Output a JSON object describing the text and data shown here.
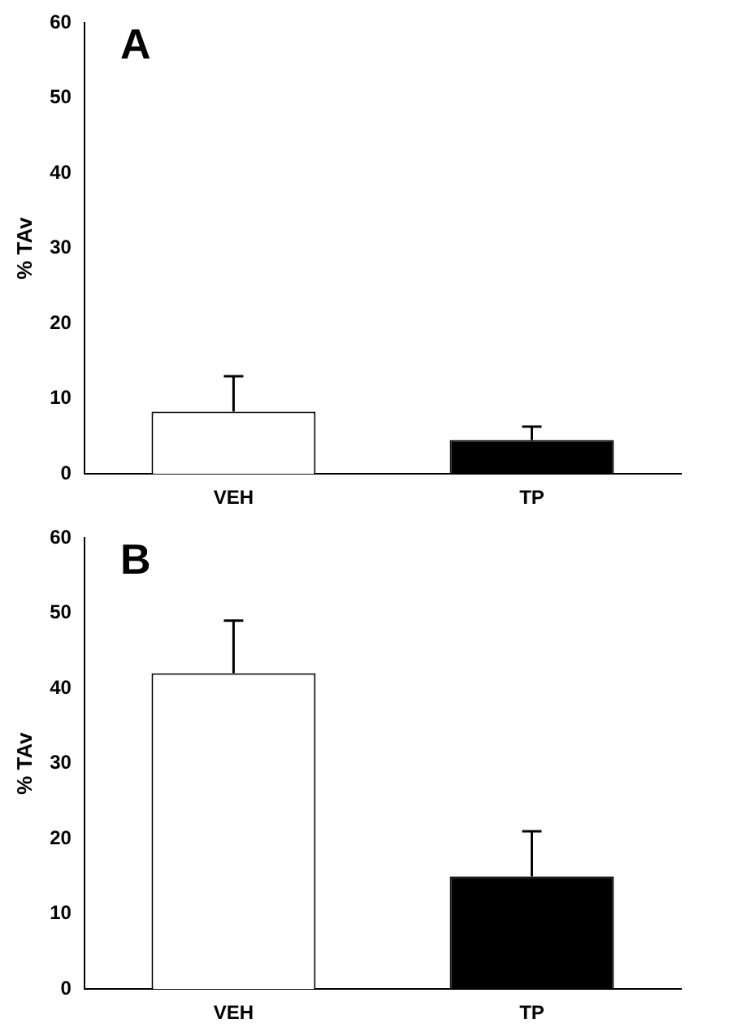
{
  "chart_data": [
    {
      "type": "bar",
      "title": "A",
      "ylabel": "% TAv",
      "categories": [
        "VEH",
        "TP"
      ],
      "values": [
        8.3,
        4.5
      ],
      "colors": [
        "#ffffff",
        "#000000"
      ],
      "errors": [
        [
          8.3,
          13
        ],
        [
          4.5,
          6.3
        ]
      ],
      "ylim": [
        0,
        60
      ],
      "yticks": [
        0,
        10,
        20,
        30,
        40,
        50,
        60
      ],
      "grid": false,
      "legend": false
    },
    {
      "type": "bar",
      "title": "B",
      "ylabel": "% TAv",
      "categories": [
        "VEH",
        "TP"
      ],
      "values": [
        42,
        15
      ],
      "colors": [
        "#ffffff",
        "#000000"
      ],
      "errors": [
        [
          42,
          49
        ],
        [
          15,
          21
        ]
      ],
      "ylim": [
        0,
        60
      ],
      "yticks": [
        0,
        10,
        20,
        30,
        40,
        50,
        60
      ],
      "grid": false,
      "legend": false
    }
  ]
}
